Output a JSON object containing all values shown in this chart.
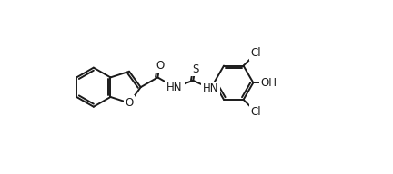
{
  "bg_color": "#ffffff",
  "line_color": "#1a1a1a",
  "line_width": 1.4,
  "font_size": 8.5,
  "fig_width": 4.32,
  "fig_height": 1.92,
  "dpi": 100,
  "xlim": [
    0,
    432
  ],
  "ylim": [
    0,
    192
  ]
}
